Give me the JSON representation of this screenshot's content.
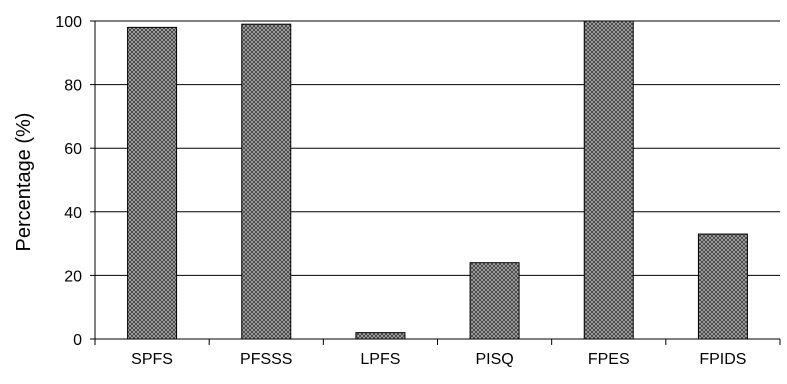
{
  "chart_data": {
    "type": "bar",
    "title": "",
    "xlabel": "",
    "ylabel": "Percentage (%)",
    "categories": [
      "SPFS",
      "PFSSS",
      "LPFS",
      "PISQ",
      "FPES",
      "FPIDS"
    ],
    "values": [
      98,
      99,
      2,
      24,
      100,
      33
    ],
    "ylim": [
      0,
      100
    ],
    "yticks": [
      "0",
      "20",
      "40",
      "60",
      "80",
      "100"
    ],
    "grid": true,
    "legend": "none",
    "bar_fill": "crosshatch",
    "colors": {
      "bar_fill": "#a8a8a8",
      "bar_hatch": "#4a4a4a",
      "bar_stroke": "#000000",
      "grid": "#000000",
      "axis": "#000000"
    }
  }
}
